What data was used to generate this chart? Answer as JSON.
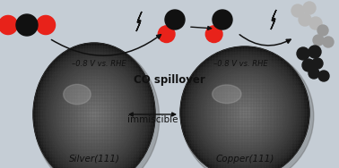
{
  "bg_color": "#c5cdd5",
  "silver_label": "Silver(111)",
  "copper_label": "Copper(111)",
  "immiscible_label": "immiscible",
  "co_spillover_label": "CO spillover",
  "voltage_label_left": "–0.8 V vs. RHE",
  "voltage_label_right": "–0.8 V vs. RHE",
  "red_color": "#e8221a",
  "dark_color": "#111111",
  "font_size_labels": 7.5,
  "font_size_small": 6.0,
  "font_size_co": 8.5
}
